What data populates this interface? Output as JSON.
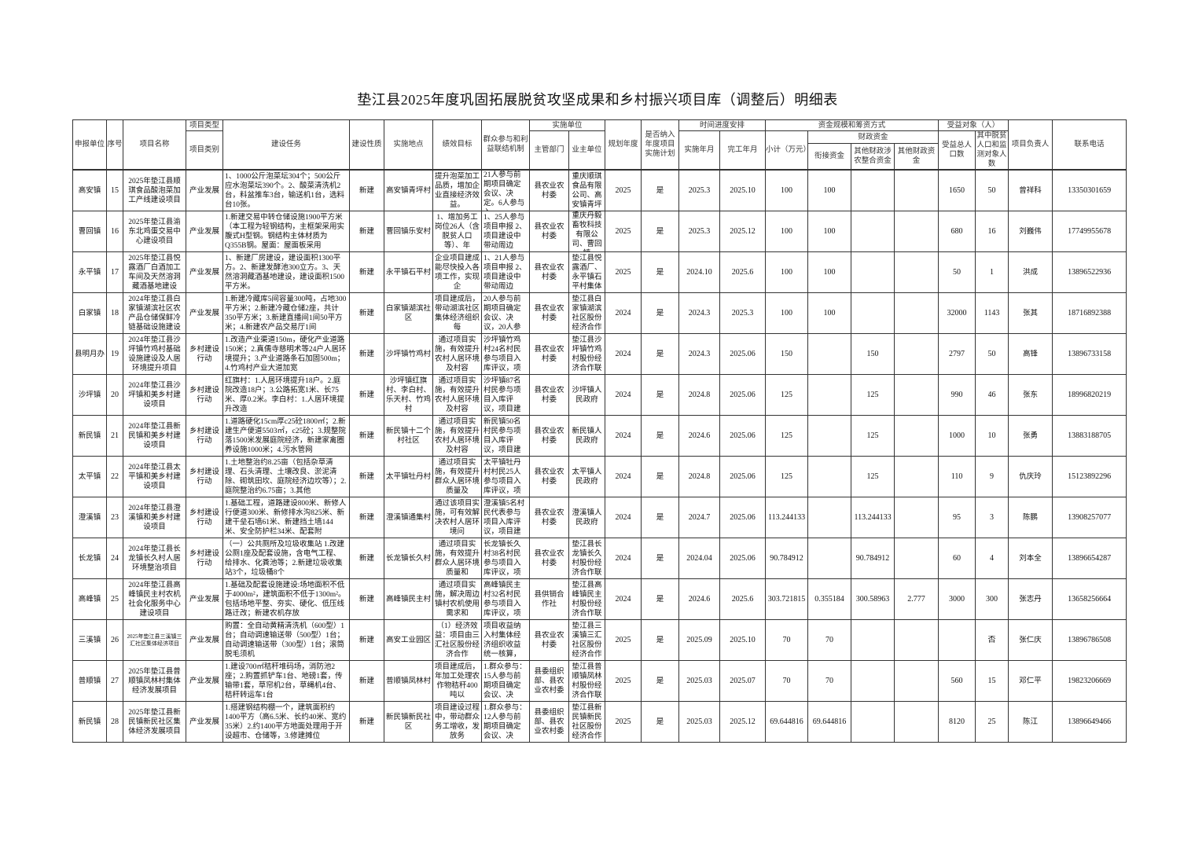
{
  "title": "垫江县2025年度巩固拓展脱贫攻坚成果和乡村振兴项目库（调整后）明细表",
  "headers": {
    "unit": "申报单位",
    "seq": "序号",
    "name": "项目名称",
    "type_group": "项目类型",
    "type": "项目类别",
    "task": "建设任务",
    "nature": "建设性质",
    "location": "实施地点",
    "goal": "绩效目标",
    "mechanism": "群众参与和利益联结机制",
    "impl_group": "实施单位",
    "dept": "主管部门",
    "owner": "业主单位",
    "plan_year": "规划年度",
    "included": "是否纳入年度项目实施计划",
    "time_group": "时间进度安排",
    "start": "实施年月",
    "end": "完工年月",
    "fund_group": "资金规模和筹资方式",
    "subtotal": "小计（万元）",
    "fiscal_group": "财政资金",
    "link_fund": "衔接资金",
    "agri_fund": "其他财政涉农整合资金",
    "other_fund": "其他财政资金",
    "benefit_group": "受益对象（人）",
    "benefit_total": "受益总人口数",
    "benefit_poor": "其中脱贫人口和监测对象人数",
    "leader": "项目负责人",
    "phone": "联系电话"
  },
  "rows": [
    [
      "高安镇",
      "15",
      "2025年垫江县顺琪食品酸泡菜加工产线建设项目",
      "产业发展",
      "1、1000公斤泡菜坛304个；500公斤应水泡菜坛390个。2、酸菜清洗机2台，料盆推车3台，输送机1台，选料台10张。",
      "新建",
      "高安镇青坪村",
      "提升泡菜加工品质，增加企业直接经济效益。",
      "21人参与前期项目确定会议、决定。6人参与入",
      "县农业农村委",
      "重庆顺琪食品有限公司、高安镇青坪",
      "2025",
      "是",
      "2025.3",
      "2025.10",
      "100",
      "100",
      "",
      "",
      "1650",
      "50",
      "曾祥科",
      "13350301659"
    ],
    [
      "曹回镇",
      "16",
      "2025年垫江县渝东北鸡蛋交易中心建设项目",
      "产业发展",
      "1.新建交易中转仓储设施1900平方米（本工程为轻钢结构，主框架采用实腹式H型钢。钢结构主体材质为Q355B钢。屋面：屋面板采用",
      "新建",
      "曹回镇乐安村",
      "1、增加务工岗位26人（含脱贫人口等）、年",
      "1、25人参与项目申报 2、项目建设中带动周边",
      "县农业农村委",
      "重庆丹毅畜牧科技有限公司、曹回镇",
      "2025",
      "是",
      "2025.3",
      "2025.12",
      "100",
      "100",
      "",
      "",
      "680",
      "16",
      "刘巍伟",
      "17749955678"
    ],
    [
      "永平镇",
      "17",
      "2025年垫江县悦露酒厂白酒加工车间及天然溶洞藏酒基地建设",
      "产业发展",
      "1、新建厂房建设，建设面积1300平方。2、新建发酵池300立方。3、天然溶洞藏酒基地建设，建设面积1500平方米。",
      "新建",
      "永平镇石平村",
      "企业项目建成能尽快投入各项工作，实现企",
      "1、21人参与项目申报 2、项目建设中带动周边",
      "县农业农村委",
      "垫江县悦露酒厂、永平镇石平村集体",
      "2025",
      "是",
      "2024.10",
      "2025.6",
      "100",
      "100",
      "",
      "",
      "50",
      "1",
      "洪成",
      "13896522936"
    ],
    [
      "白家镇",
      "18",
      "2024年垫江县白家镇湖滨社区农产品仓储保鲜冷链基础设施建设",
      "产业发展",
      "1.新建冷藏库5间容量300吨，占地300平方米；2.新建冷藏仓储2座，共计350平方米；3.新建直播间1间50平方米；4.新建农产品交易厅1间",
      "新建",
      "白家镇湖滨社区",
      "项目建成后，带动湖滨社区集体经济组织每",
      "20人参与前期项目确定会议、决议，20人参",
      "县农业农村委",
      "垫江县白家镇湖滨社区股份经济合作",
      "2024",
      "是",
      "2024.3",
      "2025.3",
      "100",
      "100",
      "",
      "",
      "32000",
      "1143",
      "张其",
      "18716892388"
    ],
    [
      "县明月办",
      "19",
      "2024年垫江县沙坪镇竹鸡村基础设施建设及人居环境提升项目",
      "乡村建设行动",
      "1.改造产业渠道150m，硬化产业道路150米；2.真儒寺慈明术等24户人居环境提升；3.产业道路条石加固500m；4.竹鸡村产业大道加宽",
      "新建",
      "沙坪镇竹鸡村",
      "通过项目实施，有效提升农村人居环境及村容",
      "沙坪镇竹鸡村24名村民参与项目入库评议，项",
      "县农业农村委",
      "垫江县沙坪镇竹鸡村股份经济合作联",
      "2024",
      "是",
      "2024.3",
      "2025.06",
      "150",
      "",
      "150",
      "",
      "2797",
      "50",
      "高锋",
      "13896733158"
    ],
    [
      "沙坪镇",
      "20",
      "2024年垫江县沙坪镇和美乡村建设项目",
      "乡村建设行动",
      "红旗村：1.人居环境提升18户。2.庭院改造18户；3.公路拓宽1米、长75米、厚0.2米。李白村：1.人居环境提升改造",
      "新建",
      "沙坪镇红旗村、李白村、乐天村、竹鸡村",
      "通过项目实施，有效提升农村人居环境及村容",
      "沙坪镇87名村民参与项目入库评议，项目建",
      "县农业农村委",
      "沙坪镇人民政府",
      "2024",
      "是",
      "2024.8",
      "2025.06",
      "125",
      "",
      "125",
      "",
      "990",
      "46",
      "张东",
      "18996820219"
    ],
    [
      "新民镇",
      "21",
      "2024年垫江县新民镇和美乡村建设项目",
      "乡村建设行动",
      "1.道路硬化15cm厚c25砼1800㎡；2.新建生产便道5503㎡，c25砼；3.规整院落1500米发展庭院经济，新建家禽圈养设施1000米；4.污水管网",
      "新建",
      "新民镇十二个村社区",
      "通过项目实施，有效提升农村人居环境及村容",
      "新民镇50名村民参与项目入库评议，项目建",
      "县农业农村委",
      "新民镇人民政府",
      "2024",
      "是",
      "2024.6",
      "2025.06",
      "125",
      "",
      "125",
      "",
      "1000",
      "10",
      "张勇",
      "13883188705"
    ],
    [
      "太平镇",
      "22",
      "2024年垫江县太平镇和美乡村建设项目",
      "乡村建设行动",
      "1.土地整治约8.25亩（包括杂草清理、石头清理、土壤改良、淤泥清除、砌筑田坎、庭院经济边坎等）；2.庭院整治约6.75亩；3.其他",
      "新建",
      "太平镇牡丹村",
      "通过项目实施，有效提升群众人居环境质量及",
      "太平镇牡丹村村民25人参与项目入库评议，项",
      "县农业农村委",
      "太平镇人民政府",
      "2024",
      "是",
      "2024.8",
      "2025.06",
      "125",
      "",
      "125",
      "",
      "110",
      "9",
      "仇庆玲",
      "15123892296"
    ],
    [
      "澄溪镇",
      "23",
      "2024年垫江县澄溪镇和美乡村建设项目",
      "乡村建设行动",
      "1.基础工程，道路建设800米、新修人行便道300米、新修排水沟825米、新建干垒石墙61米、新建挡土墙144米、安全防护栏34米、配套附",
      "新建",
      "澄溪镇通集村",
      "通过该项目实施，可有效解决农村人居环境问",
      "澄溪镇5名村民代表参与项目入库评议，项目建",
      "县农业农村委",
      "澄溪镇人民政府",
      "2024",
      "是",
      "2024.7",
      "2025.06",
      "113.244133",
      "",
      "113.244133",
      "",
      "95",
      "3",
      "陈鹏",
      "13908257077"
    ],
    [
      "长龙镇",
      "24",
      "2024年垫江县长龙镇长久村人居环境整治项目",
      "乡村建设行动",
      "（一）公共厕所及垃圾收集站 1.改建公厕1座及配套设施，含电气工程、给排水、化粪池等；2.新建垃圾收集站3个，垃圾桶8个",
      "新建",
      "长龙镇长久村",
      "通过项目实施，有效提升群众人居环境质量和",
      "长龙镇长久村38名村民参与项目入库评议，项",
      "县农业农村委",
      "垫江县长龙镇长久村股份经济合作联",
      "2024",
      "是",
      "2024.04",
      "2025.06",
      "90.784912",
      "",
      "90.784912",
      "",
      "60",
      "4",
      "刘本全",
      "13896654287"
    ],
    [
      "高峰镇",
      "25",
      "2024年垫江县高峰镇民主村农机社会化服务中心建设项目",
      "产业发展",
      "1.基础及配套设施建设:场地面积不低于4000m²，建筑面积不低于1300m²。包括场地平整、夯实、硬化、低压线路迁改；新建农机存放",
      "新建",
      "高峰镇民主村",
      "通过项目实施，解决周边镇村农机使用需求和",
      "高峰镇民主村32名村民参与项目入库评议，项",
      "县供销合作社",
      "垫江县高峰镇民主村股份经济合作联",
      "2024",
      "是",
      "2024.6",
      "2025.6",
      "303.721815",
      "0.355184",
      "300.58963",
      "2.777",
      "3000",
      "300",
      "张志丹",
      "13658256664"
    ],
    [
      "三溪镇",
      "26",
      "2025年垫江县三溪镇三汇社区集体经济项目",
      "产业发展",
      "购置：全自动黄精清洗机（600型）1台；自动调速输送带（500型）1台；自动调速输送带（300型）1台；滚筒脱毛须机",
      "新建",
      "高安工业园区",
      "（1）经济效益：项目由三汇社区股份经济合作",
      "项目收益纳入村集体经济组织收益统一核算，",
      "县农业农村委",
      "垫江县三溪镇三汇社区股份经济合作",
      "2025",
      "是",
      "2025.09",
      "2025.10",
      "70",
      "70",
      "",
      "",
      "",
      "否",
      "张仁庆",
      "13896786508"
    ],
    [
      "普顺镇",
      "27",
      "2025年垫江县普顺镇凤林村集体经济发展项目",
      "产业发展",
      "1.建设700㎡秸秆堆码场，消防池2座；2.购置抓铲车1台、地磅1套，传输带1套，草帘机2台，草绳机4台、秸秆转运车1台",
      "新建",
      "普顺镇凤林村",
      "项目建成后，年加工处理农作物秸秆400吨以",
      "1.群众参与：15人参与前期项目确定会议、决",
      "县委组织部、县农业农村委",
      "垫江县普顺镇凤林村股份经济合作联",
      "2025",
      "是",
      "2025.03",
      "2025.07",
      "70",
      "70",
      "",
      "",
      "560",
      "15",
      "邓仁平",
      "19823206669"
    ],
    [
      "新民镇",
      "28",
      "2025年垫江县新民镇新民社区集体经济发展项目",
      "产业发展",
      "1.搭建钢结构棚一个，建筑面积约1400平方（高6.5米、长约40米、宽约35米）2.约1400平方地面处理用于开设超市、仓储等，3.修建摊位",
      "新建",
      "新民镇新民社区",
      "项目建设过程中，带动群众务工增收，发放务",
      "1.群众参与：12人参与前期项目确定会议、决",
      "县委组织部、县农业农村委",
      "垫江县新民镇新民社区股份经济合作",
      "2025",
      "是",
      "2025.03",
      "2025.12",
      "69.644816",
      "69.644816",
      "",
      "",
      "8120",
      "25",
      "陈江",
      "13896649466"
    ]
  ]
}
